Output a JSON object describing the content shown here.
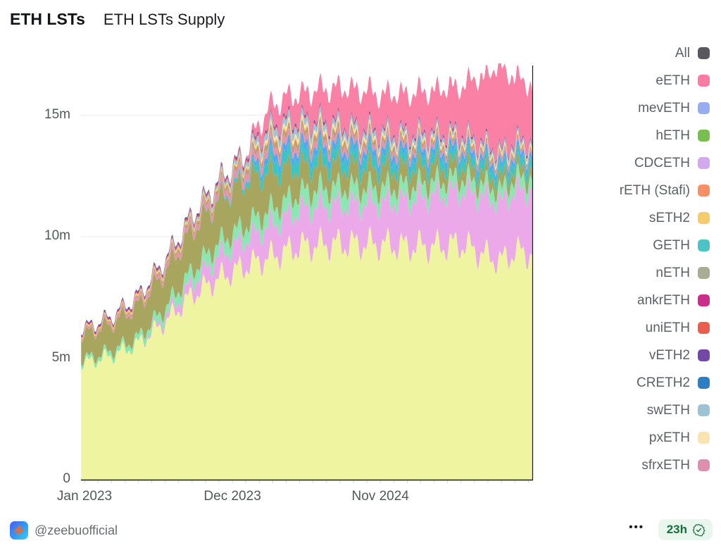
{
  "header": {
    "app_title": "ETH LSTs",
    "chart_title": "ETH LSTs Supply"
  },
  "legend": {
    "items": [
      {
        "label": "All",
        "color": "#58585e"
      },
      {
        "label": "eETH",
        "color": "#fb7ba2"
      },
      {
        "label": "mevETH",
        "color": "#96aef1"
      },
      {
        "label": "hETH",
        "color": "#77bf4e"
      },
      {
        "label": "CDCETH",
        "color": "#d2a8ef"
      },
      {
        "label": "rETH (Stafi)",
        "color": "#f68f63"
      },
      {
        "label": "sETH2",
        "color": "#f3cd67"
      },
      {
        "label": "GETH",
        "color": "#4cc4c5"
      },
      {
        "label": "nETH",
        "color": "#a9ad93"
      },
      {
        "label": "ankrETH",
        "color": "#cc2d8c"
      },
      {
        "label": "uniETH",
        "color": "#ea5c4e"
      },
      {
        "label": "vETH2",
        "color": "#7448a8"
      },
      {
        "label": "CRETH2",
        "color": "#2d7fc4"
      },
      {
        "label": "swETH",
        "color": "#9cc3d5"
      },
      {
        "label": "pxETH",
        "color": "#fbe3b0"
      },
      {
        "label": "sfrxETH",
        "color": "#dd8fab"
      }
    ]
  },
  "chart_data": {
    "type": "area",
    "stacked": true,
    "title": "ETH LSTs Supply",
    "values_unit": "millions of ETH",
    "x_unit": "months since Jan 2023",
    "x": [
      0,
      2,
      4,
      6,
      8,
      10,
      12,
      13,
      14,
      15,
      16,
      18,
      20,
      22,
      24,
      26,
      28,
      30,
      31,
      32,
      33.3
    ],
    "x_ticks": [
      {
        "label": "Jan 2023",
        "month": 0
      },
      {
        "label": "Dec 2023",
        "month": 11
      },
      {
        "label": "Nov 2024",
        "month": 22
      }
    ],
    "y_ticks": [
      {
        "label": "0",
        "value_millions": 0
      },
      {
        "label": "5m",
        "value_millions": 5
      },
      {
        "label": "10m",
        "value_millions": 10
      },
      {
        "label": "15m",
        "value_millions": 15
      }
    ],
    "ylim_millions": [
      0,
      17
    ],
    "grid": "horizontal",
    "legend_position": "right",
    "series": [
      {
        "name": "base (unlabeled)",
        "color": "#eef49f",
        "values": [
          4.8,
          5.1,
          5.6,
          6.5,
          7.6,
          8.3,
          8.8,
          9.0,
          9.2,
          9.4,
          9.6,
          9.7,
          9.7,
          9.7,
          9.6,
          9.6,
          9.7,
          9.2,
          9.0,
          9.4,
          9.3
        ]
      },
      {
        "name": "CDCETH",
        "color": "#eba9ea",
        "values": [
          0,
          0,
          0,
          0.2,
          0.5,
          0.9,
          1.1,
          1.2,
          1.3,
          1.4,
          1.5,
          1.6,
          1.65,
          1.7,
          1.9,
          2.1,
          2.2,
          2.4,
          2.4,
          2.5,
          2.6
        ]
      },
      {
        "name": "hETH",
        "color": "#8be6b2",
        "values": [
          0.15,
          0.2,
          0.25,
          0.35,
          0.5,
          0.55,
          0.6,
          0.62,
          0.65,
          0.68,
          0.7,
          0.72,
          0.68,
          0.62,
          0.58,
          0.55,
          0.52,
          0.5,
          0.5,
          0.5,
          0.5
        ]
      },
      {
        "name": "nETH",
        "color": "#a8a55e",
        "values": [
          1.0,
          1.1,
          1.3,
          1.5,
          1.65,
          1.75,
          1.8,
          1.7,
          1.5,
          1.3,
          1.1,
          0.95,
          0.85,
          0.8,
          0.72,
          0.65,
          0.55,
          0.48,
          0.45,
          0.42,
          0.4
        ]
      },
      {
        "name": "GETH",
        "color": "#3bc5c4",
        "values": [
          0,
          0,
          0,
          0,
          0,
          0.05,
          0.15,
          0.35,
          0.5,
          0.52,
          0.5,
          0.48,
          0.45,
          0.42,
          0.4,
          0.4,
          0.38,
          0.36,
          0.36,
          0.35,
          0.35
        ]
      },
      {
        "name": "mevETH",
        "color": "#4fa9f0",
        "values": [
          0,
          0,
          0,
          0,
          0,
          0,
          0.05,
          0.2,
          0.3,
          0.3,
          0.3,
          0.3,
          0.3,
          0.29,
          0.27,
          0.26,
          0.25,
          0.24,
          0.23,
          0.23,
          0.23
        ]
      },
      {
        "name": "sfrxETH",
        "color": "#e296b4",
        "values": [
          0.06,
          0.08,
          0.12,
          0.16,
          0.2,
          0.25,
          0.3,
          0.3,
          0.3,
          0.28,
          0.27,
          0.24,
          0.22,
          0.2,
          0.18,
          0.16,
          0.14,
          0.12,
          0.12,
          0.11,
          0.1
        ]
      },
      {
        "name": "rETH (Stafi)",
        "color": "#c79b72",
        "values": [
          0.05,
          0.06,
          0.08,
          0.1,
          0.13,
          0.16,
          0.2,
          0.23,
          0.25,
          0.25,
          0.25,
          0.23,
          0.21,
          0.19,
          0.17,
          0.16,
          0.14,
          0.13,
          0.12,
          0.11,
          0.1
        ]
      },
      {
        "name": "sETH2",
        "color": "#f2cf6e",
        "values": [
          0.07,
          0.07,
          0.08,
          0.08,
          0.09,
          0.09,
          0.09,
          0.09,
          0.09,
          0.09,
          0.09,
          0.08,
          0.08,
          0.08,
          0.07,
          0.07,
          0.07,
          0.06,
          0.06,
          0.06,
          0.06
        ]
      },
      {
        "name": "pxETH",
        "color": "#f8e4ac",
        "values": [
          0,
          0,
          0,
          0,
          0,
          0,
          0.02,
          0.08,
          0.12,
          0.14,
          0.14,
          0.12,
          0.1,
          0.09,
          0.08,
          0.08,
          0.07,
          0.07,
          0.07,
          0.07,
          0.07
        ]
      },
      {
        "name": "swETH",
        "color": "#9fc4d6",
        "values": [
          0,
          0,
          0.02,
          0.05,
          0.08,
          0.12,
          0.18,
          0.25,
          0.3,
          0.3,
          0.28,
          0.25,
          0.22,
          0.2,
          0.19,
          0.17,
          0.16,
          0.14,
          0.14,
          0.13,
          0.12
        ]
      },
      {
        "name": "uniETH",
        "color": "#e4574d",
        "values": [
          0.02,
          0.03,
          0.04,
          0.05,
          0.06,
          0.06,
          0.06,
          0.06,
          0.06,
          0.06,
          0.05,
          0.05,
          0.05,
          0.04,
          0.04,
          0.04,
          0.04,
          0.03,
          0.03,
          0.03,
          0.03
        ]
      },
      {
        "name": "ankrETH",
        "color": "#c12a86",
        "values": [
          0.04,
          0.04,
          0.04,
          0.04,
          0.04,
          0.04,
          0.04,
          0.04,
          0.04,
          0.04,
          0.04,
          0.04,
          0.03,
          0.03,
          0.03,
          0.03,
          0.03,
          0.03,
          0.03,
          0.03,
          0.03
        ]
      },
      {
        "name": "vETH2",
        "color": "#5f3b93",
        "values": [
          0.03,
          0.03,
          0.03,
          0.03,
          0.03,
          0.03,
          0.03,
          0.03,
          0.03,
          0.03,
          0.03,
          0.03,
          0.03,
          0.03,
          0.03,
          0.03,
          0.03,
          0.03,
          0.03,
          0.03,
          0.03
        ]
      },
      {
        "name": "CRETH2",
        "color": "#2f7fc1",
        "values": [
          0.02,
          0.02,
          0.02,
          0.02,
          0.02,
          0.02,
          0.02,
          0.02,
          0.02,
          0.02,
          0.02,
          0.02,
          0.02,
          0.02,
          0.02,
          0.02,
          0.02,
          0.02,
          0.02,
          0.02,
          0.02
        ]
      },
      {
        "name": "eETH",
        "color": "#fa80a5",
        "values": [
          0,
          0,
          0,
          0,
          0,
          0,
          0.05,
          0.5,
          0.8,
          0.9,
          1.0,
          1.3,
          1.5,
          1.45,
          1.6,
          1.7,
          1.9,
          2.9,
          3.4,
          2.6,
          2.2
        ]
      }
    ]
  },
  "footer": {
    "handle": "@zeebuofficial",
    "more_options": "•••",
    "badge_text": "23h"
  }
}
